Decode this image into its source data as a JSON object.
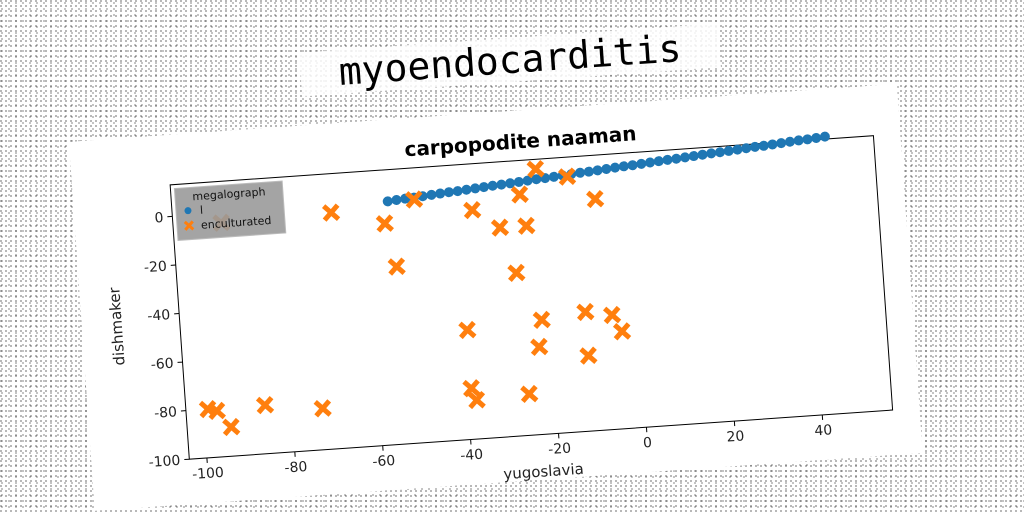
{
  "header": {
    "title": "myoendocarditis"
  },
  "chart_data": {
    "type": "scatter",
    "title": "carpopodite naaman",
    "xlabel": "yugoslavia",
    "ylabel": "dishmaker",
    "xlim": [
      -104,
      56
    ],
    "ylim": [
      -100,
      13
    ],
    "xticks": [
      -100,
      -80,
      -60,
      -40,
      -20,
      0,
      20,
      40
    ],
    "yticks": [
      0,
      -20,
      -40,
      -60,
      -80,
      -100
    ],
    "legend": {
      "title": "megalograph",
      "placement": "top-left"
    },
    "series": [
      {
        "name": "l",
        "color": "#1f77b4",
        "marker": "circle",
        "x": [
          -55,
          -53,
          -51,
          -49,
          -47,
          -45,
          -43,
          -41,
          -39,
          -37,
          -35,
          -33,
          -31,
          -29,
          -27,
          -25,
          -23,
          -21,
          -19,
          -17,
          -15,
          -13,
          -11,
          -9,
          -7,
          -5,
          -3,
          -1,
          1,
          3,
          5,
          7,
          9,
          11,
          13,
          15,
          17,
          19,
          21,
          23,
          25,
          27,
          29,
          31,
          33,
          35,
          37,
          39,
          41,
          43,
          45
        ],
        "y": [
          0,
          0.3,
          0.6,
          0.8,
          1.1,
          1.4,
          1.7,
          2.0,
          2.2,
          2.5,
          2.8,
          3.1,
          3.4,
          3.6,
          3.9,
          4.2,
          4.5,
          4.8,
          5.0,
          5.3,
          5.6,
          5.9,
          6.2,
          6.4,
          6.7,
          7.0,
          7.3,
          7.6,
          7.8,
          8.1,
          8.4,
          8.7,
          9.0,
          9.2,
          9.5,
          9.8,
          10.1,
          10.4,
          10.6,
          10.9,
          11.2,
          11.5,
          11.8,
          12.0,
          12.3,
          12.6,
          12.9,
          13.2,
          13.4,
          13.7,
          14.0
        ]
      },
      {
        "name": "enculturated",
        "color": "#ff7f0e",
        "marker": "x",
        "x": [
          -99,
          -97,
          -94,
          -86,
          -73,
          -68,
          -56,
          -54,
          -49,
          -39,
          -38,
          -39,
          -36,
          -30,
          -27,
          -26,
          -25,
          -24,
          -23,
          -22,
          -21,
          -14,
          -12,
          -12,
          -8,
          -6,
          -4,
          -93
        ],
        "y": [
          -80,
          -81,
          -88,
          -80,
          -83,
          -3,
          -9,
          -27,
          0,
          -79,
          -84,
          -55,
          -6,
          -14,
          -33,
          -83,
          -1,
          -14,
          -64,
          -53,
          9,
          5,
          -51,
          -69,
          -5,
          -53,
          -60,
          -4
        ]
      }
    ]
  }
}
